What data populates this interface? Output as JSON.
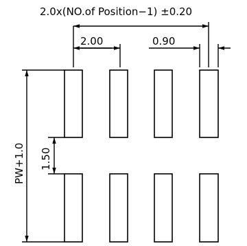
{
  "dimensions": {
    "total_pitch": "2.0x(NO.of Position−1) ±0.20",
    "pitch": "2.00",
    "pad_width": "0.90",
    "row_gap": "1.50",
    "overall_height": "PW+1.0"
  },
  "pads": {
    "columns": 4,
    "rows": 2
  },
  "colors": {
    "line": "#000000",
    "background": "#ffffff"
  }
}
